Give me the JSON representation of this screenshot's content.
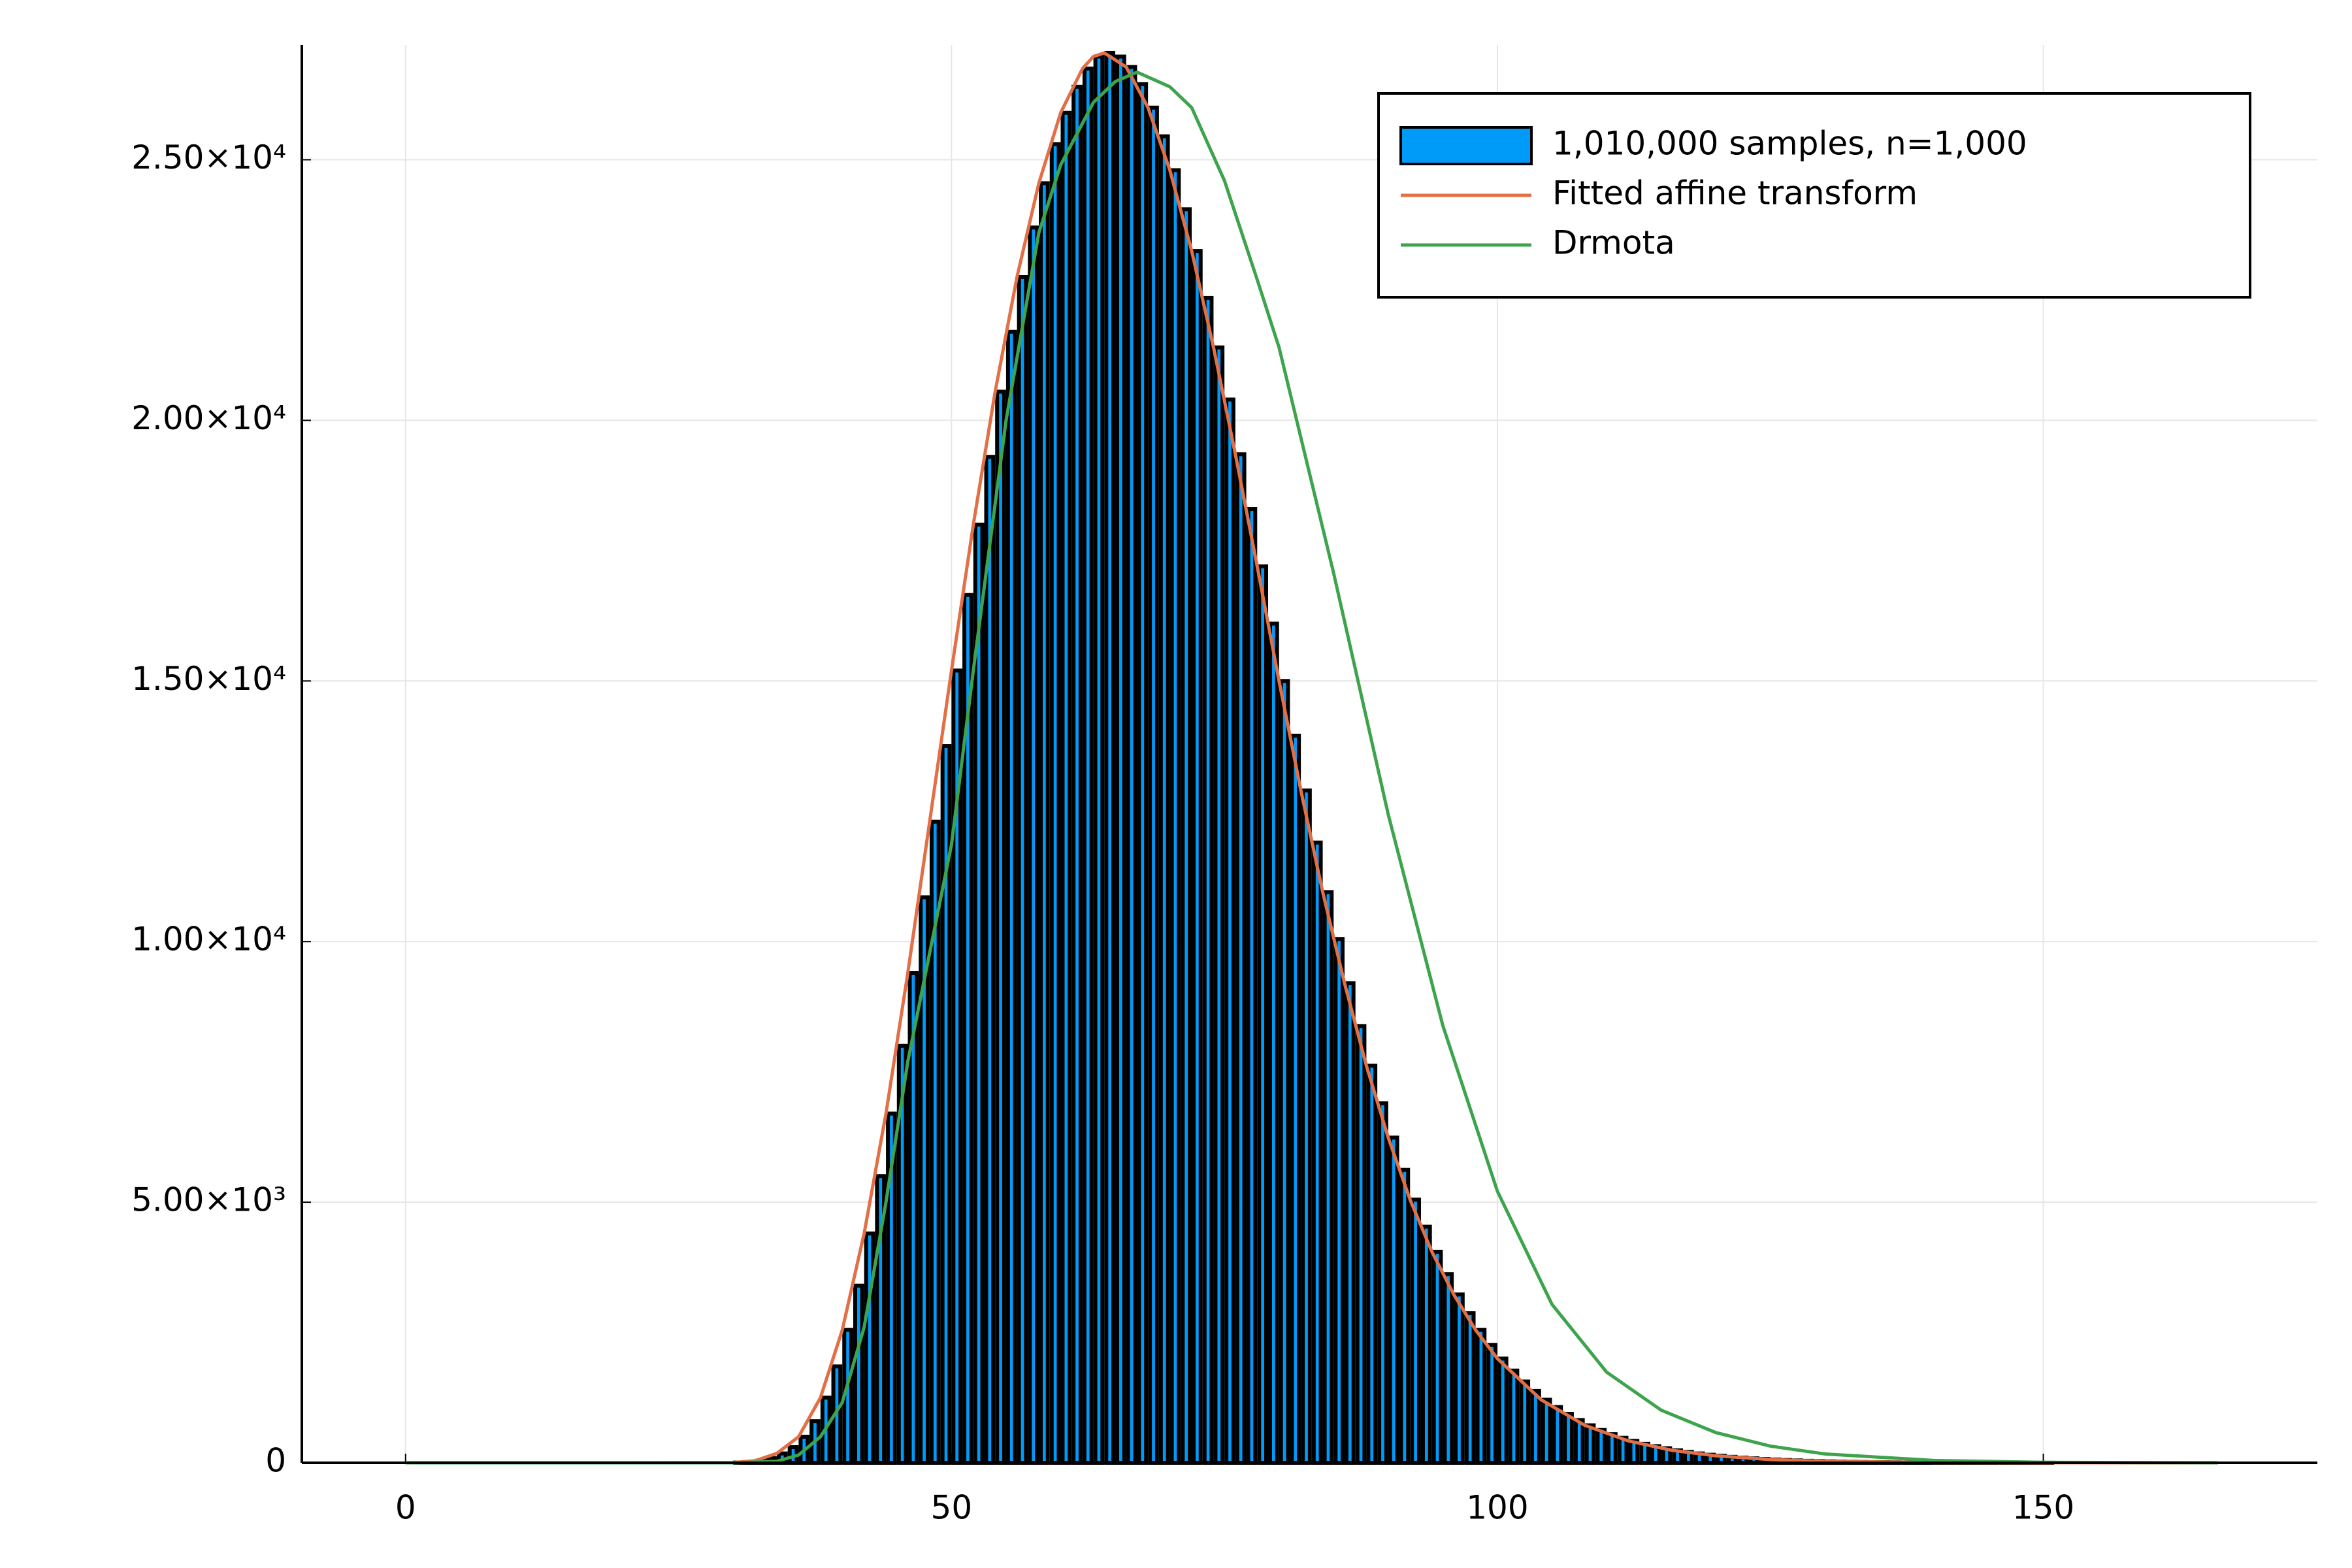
{
  "chart_data": {
    "type": "histogram",
    "xlim": [
      -9.5,
      175.1
    ],
    "xticks": [
      0,
      50,
      100,
      150
    ],
    "ylim": [
      0,
      27200
    ],
    "yticks": [
      0,
      {
        "value": 5000,
        "label": "5.00×10³"
      },
      {
        "value": 10000,
        "label": "1.00×10⁴"
      },
      {
        "value": 15000,
        "label": "1.50×10⁴"
      },
      {
        "value": 20000,
        "label": "2.00×10⁴"
      },
      {
        "value": 25000,
        "label": "2.50×10⁴"
      }
    ],
    "grid": true,
    "legend": "top-right",
    "series": [
      {
        "name": "1,010,000 samples, n=1,000",
        "type": "histogram",
        "color": "#009af9",
        "bins": [
          30,
          31,
          32,
          33,
          34,
          35,
          36,
          37,
          38,
          39,
          40,
          41,
          42,
          43,
          44,
          45,
          46,
          47,
          48,
          49,
          50,
          51,
          52,
          53,
          54,
          55,
          56,
          57,
          58,
          59,
          60,
          61,
          62,
          63,
          64,
          65,
          66,
          67,
          68,
          69,
          70,
          71,
          72,
          73,
          74,
          75,
          76,
          77,
          78,
          79,
          80,
          81,
          82,
          83,
          84,
          85,
          86,
          87,
          88,
          89,
          90,
          91,
          92,
          93,
          94,
          95,
          96,
          97,
          98,
          99,
          100,
          101,
          102,
          103,
          104,
          105,
          106,
          107,
          108,
          109,
          110,
          111,
          112,
          113,
          114,
          115,
          116,
          117,
          118,
          119,
          120,
          121,
          122,
          123,
          124,
          125,
          126,
          127,
          128,
          129,
          130,
          131,
          132,
          133,
          134,
          135,
          136,
          137,
          138,
          139,
          140,
          141,
          142,
          143,
          144,
          145,
          146,
          147,
          148,
          149,
          150,
          151
        ],
        "values": [
          5,
          15,
          40,
          90,
          180,
          300,
          500,
          800,
          1250,
          1850,
          2550,
          3400,
          4400,
          5500,
          6700,
          8000,
          9400,
          10850,
          12300,
          13750,
          15200,
          16650,
          18000,
          19300,
          20550,
          21700,
          22750,
          23700,
          24550,
          25300,
          25900,
          26400,
          26750,
          26980,
          27050,
          26980,
          26780,
          26450,
          26000,
          25450,
          24800,
          24050,
          23250,
          22350,
          21400,
          20400,
          19350,
          18300,
          17200,
          16100,
          15000,
          13950,
          12900,
          11900,
          10950,
          10050,
          9200,
          8380,
          7620,
          6900,
          6240,
          5620,
          5050,
          4530,
          4050,
          3620,
          3230,
          2870,
          2550,
          2260,
          2000,
          1770,
          1560,
          1380,
          1210,
          1070,
          940,
          820,
          720,
          630,
          550,
          480,
          420,
          365,
          320,
          280,
          240,
          210,
          180,
          155,
          135,
          115,
          100,
          86,
          74,
          63,
          54,
          46,
          39,
          33,
          28,
          24,
          20,
          17,
          14,
          12,
          10,
          8,
          7,
          6,
          5,
          4,
          3,
          3,
          2,
          2,
          2,
          1,
          1,
          1,
          1
        ]
      },
      {
        "name": "Fitted affine transform",
        "type": "line",
        "color": "#e26f46",
        "x": [
          0,
          20,
          30,
          32,
          34,
          36,
          38,
          40,
          42,
          44,
          46,
          48,
          50,
          52,
          54,
          56,
          58,
          60,
          62,
          63,
          64,
          66,
          68,
          70,
          72,
          74,
          76,
          78,
          80,
          82,
          84,
          86,
          88,
          90,
          92,
          94,
          96,
          98,
          100,
          104,
          108,
          112,
          116,
          120,
          125,
          130,
          140,
          150,
          166
        ],
        "values": [
          0,
          0,
          5,
          40,
          180,
          500,
          1250,
          2550,
          4400,
          6700,
          9400,
          12300,
          15200,
          18000,
          20550,
          22750,
          24550,
          25900,
          26750,
          26980,
          27050,
          26780,
          26000,
          24800,
          23250,
          21400,
          19350,
          17200,
          15000,
          12900,
          10950,
          9200,
          7620,
          6240,
          5050,
          4050,
          3230,
          2550,
          2000,
          1210,
          720,
          420,
          240,
          135,
          63,
          28,
          5,
          1,
          0
        ]
      },
      {
        "name": "Drmota",
        "type": "line",
        "color": "#3da44d",
        "x": [
          0,
          30,
          34,
          36,
          38,
          40,
          42,
          44,
          46,
          48,
          50,
          52,
          55,
          58,
          60,
          63,
          65,
          67,
          70,
          72,
          75,
          78,
          80,
          85,
          90,
          95,
          100,
          105,
          110,
          115,
          120,
          125,
          130,
          140,
          150,
          166
        ],
        "values": [
          0,
          0,
          30,
          150,
          500,
          1160,
          2600,
          5000,
          7700,
          9780,
          11860,
          15200,
          20000,
          23600,
          24900,
          26100,
          26500,
          26680,
          26400,
          26000,
          24600,
          22700,
          21400,
          17070,
          12440,
          8390,
          5210,
          3040,
          1740,
          1010,
          580,
          320,
          170,
          45,
          10,
          0
        ]
      }
    ]
  }
}
